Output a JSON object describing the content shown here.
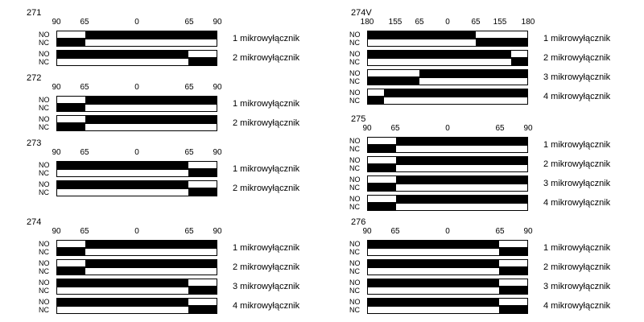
{
  "labels": {
    "no": "NO",
    "nc": "NC"
  },
  "colors": {
    "on": "#000000",
    "off": "#ffffff"
  },
  "groups": [
    {
      "title": "271",
      "ticks": [
        "90",
        "65",
        "0",
        "65",
        "90"
      ],
      "switches": [
        {
          "name": "1 mikrowyłącznik",
          "no": [
            [
              0.175,
              1.0
            ]
          ],
          "nc": [
            [
              0.0,
              0.175
            ]
          ]
        },
        {
          "name": "2 mikrowyłącznik",
          "no": [
            [
              0.0,
              0.825
            ]
          ],
          "nc": [
            [
              0.825,
              1.0
            ]
          ]
        }
      ]
    },
    {
      "title": "272",
      "ticks": [
        "90",
        "65",
        "0",
        "65",
        "90"
      ],
      "switches": [
        {
          "name": "1 mikrowyłącznik",
          "no": [
            [
              0.175,
              1.0
            ]
          ],
          "nc": [
            [
              0.0,
              0.175
            ]
          ]
        },
        {
          "name": "2 mikrowyłącznik",
          "no": [
            [
              0.175,
              1.0
            ]
          ],
          "nc": [
            [
              0.0,
              0.175
            ]
          ]
        }
      ]
    },
    {
      "title": "273",
      "ticks": [
        "90",
        "65",
        "0",
        "65",
        "90"
      ],
      "switches": [
        {
          "name": "1 mikrowyłącznik",
          "no": [
            [
              0.0,
              0.825
            ]
          ],
          "nc": [
            [
              0.825,
              1.0
            ]
          ]
        },
        {
          "name": "2 mikrowyłącznik",
          "no": [
            [
              0.0,
              0.825
            ]
          ],
          "nc": [
            [
              0.825,
              1.0
            ]
          ]
        }
      ]
    },
    {
      "title": "274",
      "ticks": [
        "90",
        "65",
        "0",
        "65",
        "90"
      ],
      "switches": [
        {
          "name": "1 mikrowyłącznik",
          "no": [
            [
              0.175,
              1.0
            ]
          ],
          "nc": [
            [
              0.0,
              0.175
            ]
          ]
        },
        {
          "name": "2 mikrowyłącznik",
          "no": [
            [
              0.175,
              1.0
            ]
          ],
          "nc": [
            [
              0.0,
              0.175
            ]
          ]
        },
        {
          "name": "3 mikrowyłącznik",
          "no": [
            [
              0.0,
              0.825
            ]
          ],
          "nc": [
            [
              0.825,
              1.0
            ]
          ]
        },
        {
          "name": "4 mikrowyłącznik",
          "no": [
            [
              0.0,
              0.825
            ]
          ],
          "nc": [
            [
              0.825,
              1.0
            ]
          ]
        }
      ]
    },
    {
      "title": "274V",
      "ticks": [
        "180",
        "155",
        "65",
        "0",
        "65",
        "155",
        "180"
      ],
      "switches": [
        {
          "name": "1 mikrowyłącznik",
          "no": [
            [
              0.0,
              0.675
            ]
          ],
          "nc": [
            [
              0.675,
              1.0
            ]
          ]
        },
        {
          "name": "2 mikrowyłącznik",
          "no": [
            [
              0.0,
              0.9
            ]
          ],
          "nc": [
            [
              0.9,
              1.0
            ]
          ]
        },
        {
          "name": "3 mikrowyłącznik",
          "no": [
            [
              0.325,
              1.0
            ]
          ],
          "nc": [
            [
              0.0,
              0.325
            ]
          ]
        },
        {
          "name": "4 mikrowyłącznik",
          "no": [
            [
              0.1,
              1.0
            ]
          ],
          "nc": [
            [
              0.0,
              0.1
            ]
          ]
        }
      ]
    },
    {
      "title": "275",
      "ticks": [
        "90",
        "65",
        "0",
        "65",
        "90"
      ],
      "switches": [
        {
          "name": "1 mikrowyłącznik",
          "no": [
            [
              0.175,
              1.0
            ]
          ],
          "nc": [
            [
              0.0,
              0.175
            ]
          ]
        },
        {
          "name": "2 mikrowyłącznik",
          "no": [
            [
              0.175,
              1.0
            ]
          ],
          "nc": [
            [
              0.0,
              0.175
            ]
          ]
        },
        {
          "name": "3 mikrowyłącznik",
          "no": [
            [
              0.175,
              1.0
            ]
          ],
          "nc": [
            [
              0.0,
              0.175
            ]
          ]
        },
        {
          "name": "4 mikrowyłącznik",
          "no": [
            [
              0.175,
              1.0
            ]
          ],
          "nc": [
            [
              0.0,
              0.175
            ]
          ]
        }
      ]
    },
    {
      "title": "276",
      "ticks": [
        "90",
        "65",
        "0",
        "65",
        "90"
      ],
      "switches": [
        {
          "name": "1 mikrowyłącznik",
          "no": [
            [
              0.0,
              0.825
            ]
          ],
          "nc": [
            [
              0.825,
              1.0
            ]
          ]
        },
        {
          "name": "2 mikrowyłącznik",
          "no": [
            [
              0.0,
              0.825
            ]
          ],
          "nc": [
            [
              0.825,
              1.0
            ]
          ]
        },
        {
          "name": "3 mikrowyłącznik",
          "no": [
            [
              0.0,
              0.825
            ]
          ],
          "nc": [
            [
              0.825,
              1.0
            ]
          ]
        },
        {
          "name": "4 mikrowyłącznik",
          "no": [
            [
              0.0,
              0.825
            ]
          ],
          "nc": [
            [
              0.825,
              1.0
            ]
          ]
        }
      ]
    }
  ]
}
